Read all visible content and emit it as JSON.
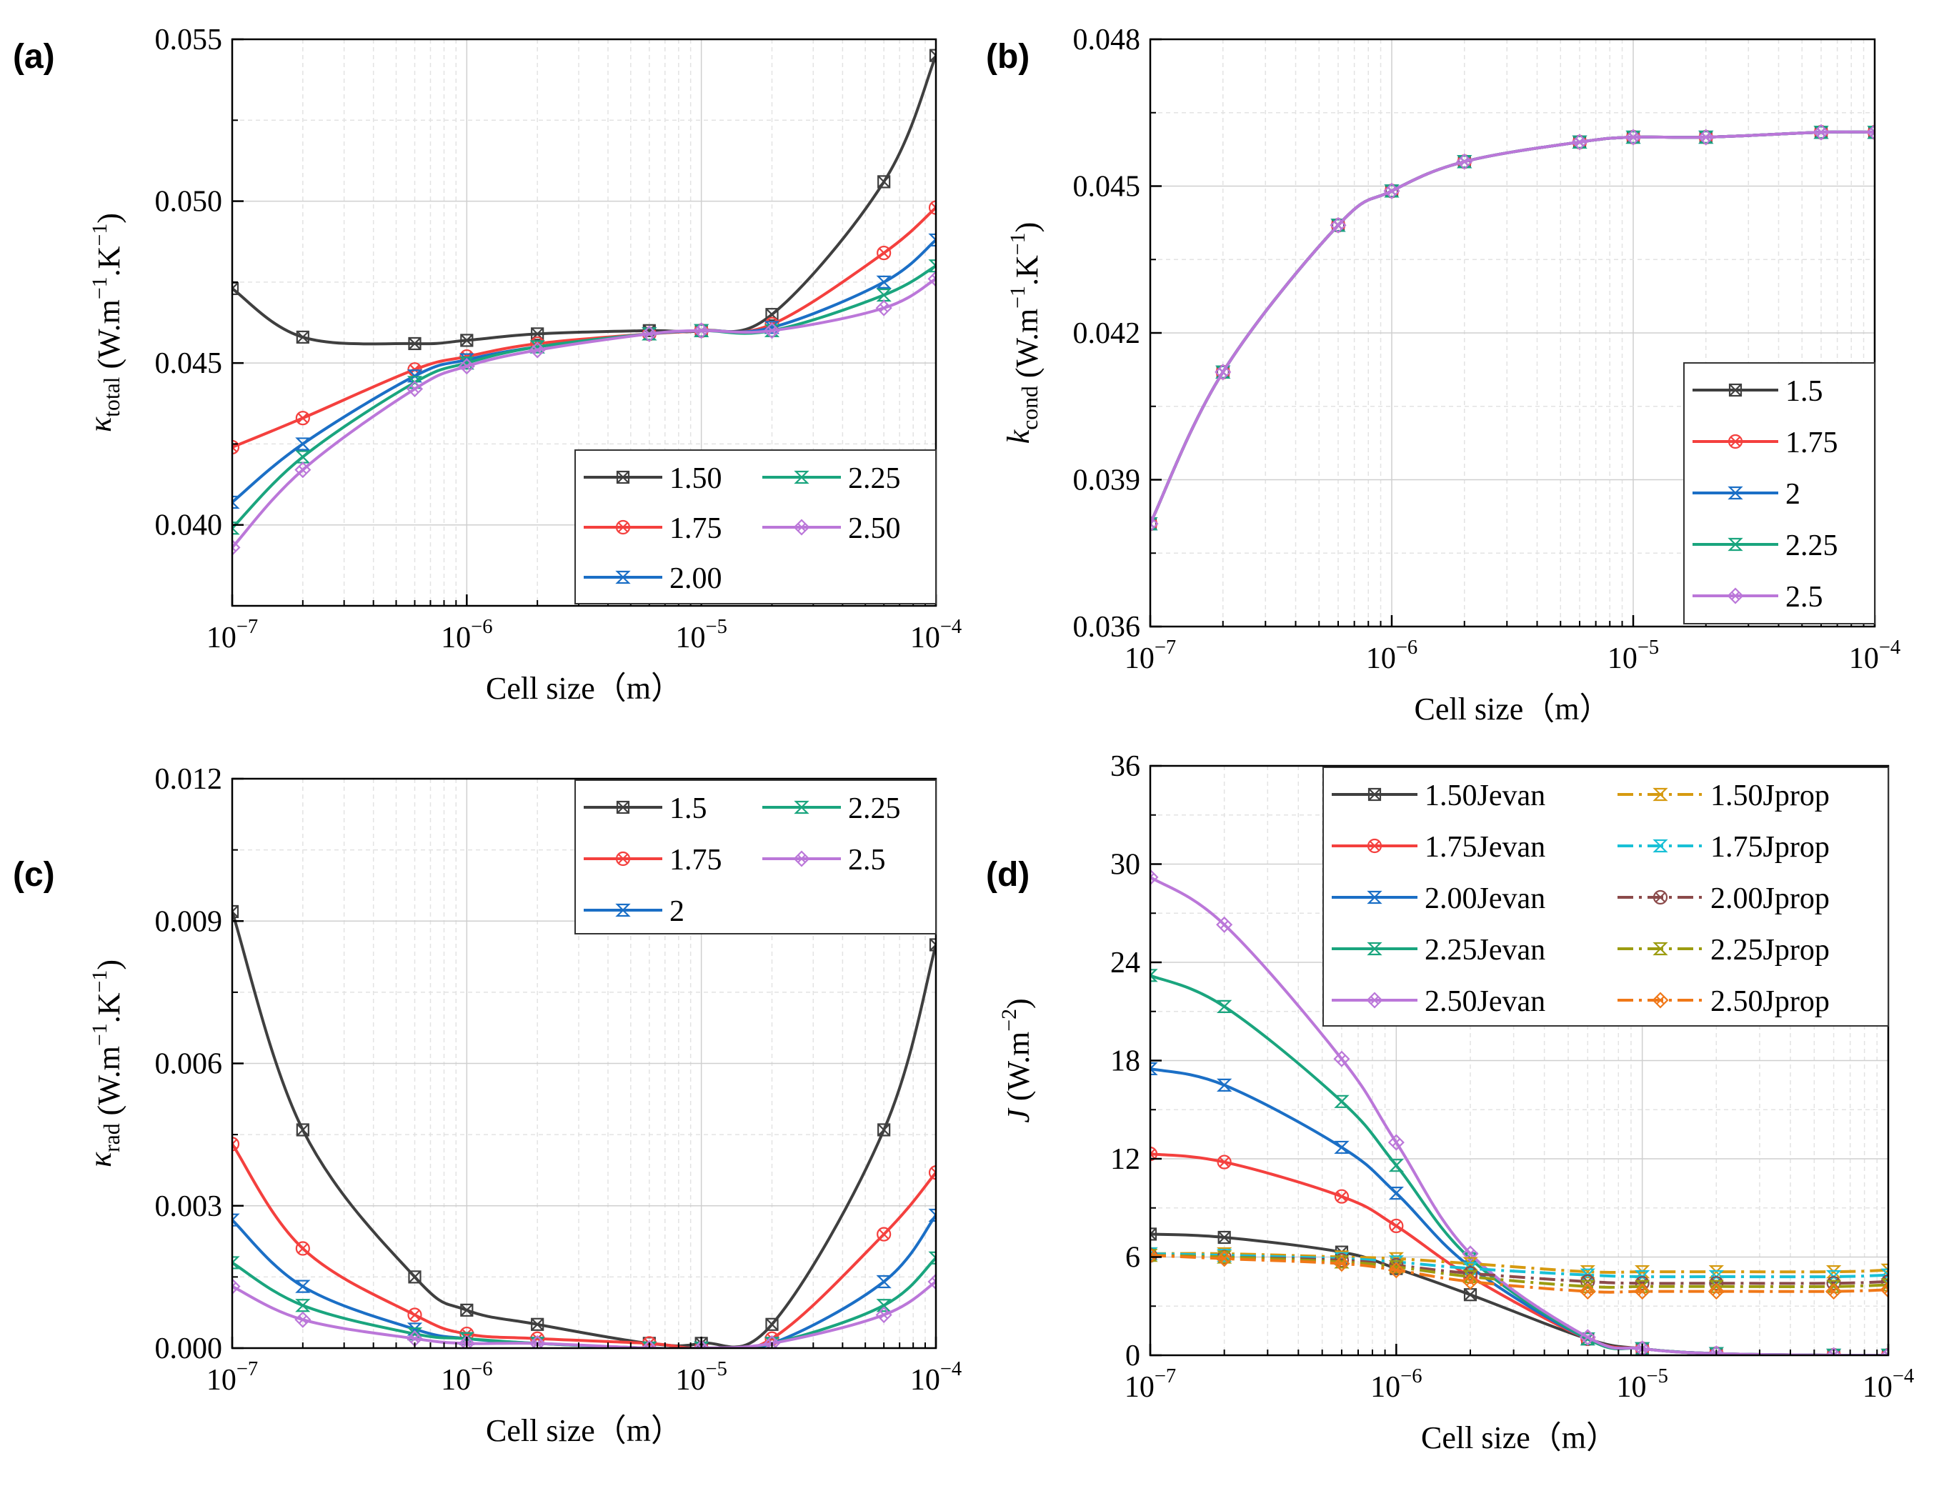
{
  "chart_data": [
    {
      "panel": "(a)",
      "type": "line",
      "xscale": "log",
      "x": [
        1e-07,
        2e-07,
        6e-07,
        1e-06,
        2e-06,
        6e-06,
        1e-05,
        2e-05,
        6e-05,
        0.0001
      ],
      "xlim": [
        1e-07,
        0.0001
      ],
      "xticks": [
        1e-07,
        1e-06,
        1e-05,
        0.0001
      ],
      "xtick_labels": [
        {
          "base": "10",
          "exp": "−7"
        },
        {
          "base": "10",
          "exp": "−6"
        },
        {
          "base": "10",
          "exp": "−5"
        },
        {
          "base": "10",
          "exp": "−4"
        }
      ],
      "ylim": [
        0.0375,
        0.055
      ],
      "yticks": [
        0.04,
        0.045,
        0.05,
        0.055
      ],
      "ytick_labels": [
        "0.040",
        "0.045",
        "0.050",
        "0.055"
      ],
      "xlabel": "Cell size（m）",
      "ylabel": {
        "symbol": "κ",
        "sub": "total",
        "unit_pre": " (W.m",
        "sup1": "−1",
        "unit_mid": ".K",
        "sup2": "−1",
        "unit_post": ")"
      },
      "legend": {
        "position": "bottom-right",
        "columns": 2
      },
      "series": [
        {
          "name": "1.50",
          "color": "#3f3f3f",
          "marker": "square-x",
          "values": [
            0.0473,
            0.0458,
            0.0456,
            0.0457,
            0.0459,
            0.046,
            0.046,
            0.0465,
            0.0506,
            0.0545
          ]
        },
        {
          "name": "1.75",
          "color": "#f4403e",
          "marker": "circle-x",
          "values": [
            0.0424,
            0.0433,
            0.0448,
            0.0452,
            0.0456,
            0.0459,
            0.046,
            0.0462,
            0.0484,
            0.0498
          ]
        },
        {
          "name": "2.00",
          "color": "#1b6fc6",
          "marker": "hourglass",
          "values": [
            0.0407,
            0.0425,
            0.0446,
            0.0451,
            0.0455,
            0.0459,
            0.046,
            0.0461,
            0.0475,
            0.0488
          ]
        },
        {
          "name": "2.25",
          "color": "#1aa57e",
          "marker": "hourglass",
          "values": [
            0.0399,
            0.0421,
            0.0444,
            0.045,
            0.0455,
            0.0459,
            0.046,
            0.046,
            0.0471,
            0.048
          ]
        },
        {
          "name": "2.50",
          "color": "#bb77d9",
          "marker": "diamond-x",
          "values": [
            0.0393,
            0.0417,
            0.0442,
            0.0449,
            0.0454,
            0.0459,
            0.046,
            0.046,
            0.0467,
            0.0476
          ]
        }
      ]
    },
    {
      "panel": "(b)",
      "type": "line",
      "xscale": "log",
      "x": [
        1e-07,
        2e-07,
        6e-07,
        1e-06,
        2e-06,
        6e-06,
        1e-05,
        2e-05,
        6e-05,
        0.0001
      ],
      "xlim": [
        1e-07,
        0.0001
      ],
      "xticks": [
        1e-07,
        1e-06,
        1e-05,
        0.0001
      ],
      "xtick_labels": [
        {
          "base": "10",
          "exp": "−7"
        },
        {
          "base": "10",
          "exp": "−6"
        },
        {
          "base": "10",
          "exp": "−5"
        },
        {
          "base": "10",
          "exp": "−4"
        }
      ],
      "ylim": [
        0.036,
        0.048
      ],
      "yticks": [
        0.036,
        0.039,
        0.042,
        0.045,
        0.048
      ],
      "ytick_labels": [
        "0.036",
        "0.039",
        "0.042",
        "0.045",
        "0.048"
      ],
      "xlabel": "Cell size（m）",
      "ylabel": {
        "symbol": "k",
        "sub": "cond",
        "unit_pre": " (W.m",
        "sup1": "−1",
        "unit_mid": ".K",
        "sup2": "−1",
        "unit_post": ")"
      },
      "legend": {
        "position": "bottom-right",
        "columns": 1
      },
      "series": [
        {
          "name": "1.5",
          "color": "#3f3f3f",
          "marker": "square-x",
          "values": [
            0.0381,
            0.0412,
            0.0442,
            0.0449,
            0.0455,
            0.0459,
            0.046,
            0.046,
            0.0461,
            0.0461
          ]
        },
        {
          "name": "1.75",
          "color": "#f4403e",
          "marker": "circle-x",
          "values": [
            0.0381,
            0.0412,
            0.0442,
            0.0449,
            0.0455,
            0.0459,
            0.046,
            0.046,
            0.0461,
            0.0461
          ]
        },
        {
          "name": "2",
          "color": "#1b6fc6",
          "marker": "hourglass",
          "values": [
            0.0381,
            0.0412,
            0.0442,
            0.0449,
            0.0455,
            0.0459,
            0.046,
            0.046,
            0.0461,
            0.0461
          ]
        },
        {
          "name": "2.25",
          "color": "#1aa57e",
          "marker": "hourglass",
          "values": [
            0.0381,
            0.0412,
            0.0442,
            0.0449,
            0.0455,
            0.0459,
            0.046,
            0.046,
            0.0461,
            0.0461
          ]
        },
        {
          "name": "2.5",
          "color": "#bb77d9",
          "marker": "diamond-x",
          "values": [
            0.0381,
            0.0412,
            0.0442,
            0.0449,
            0.0455,
            0.0459,
            0.046,
            0.046,
            0.0461,
            0.0461
          ]
        }
      ]
    },
    {
      "panel": "(c)",
      "type": "line",
      "xscale": "log",
      "x": [
        1e-07,
        2e-07,
        6e-07,
        1e-06,
        2e-06,
        6e-06,
        1e-05,
        2e-05,
        6e-05,
        0.0001
      ],
      "xlim": [
        1e-07,
        0.0001
      ],
      "xticks": [
        1e-07,
        1e-06,
        1e-05,
        0.0001
      ],
      "xtick_labels": [
        {
          "base": "10",
          "exp": "−7"
        },
        {
          "base": "10",
          "exp": "−6"
        },
        {
          "base": "10",
          "exp": "−5"
        },
        {
          "base": "10",
          "exp": "−4"
        }
      ],
      "ylim": [
        0,
        0.012
      ],
      "yticks": [
        0,
        0.003,
        0.006,
        0.009,
        0.012
      ],
      "ytick_labels": [
        "0.000",
        "0.003",
        "0.006",
        "0.009",
        "0.012"
      ],
      "xlabel": "Cell size（m）",
      "ylabel": {
        "symbol": "κ",
        "sub": "rad",
        "unit_pre": " (W.m",
        "sup1": "−1",
        "unit_mid": ".K",
        "sup2": "−1",
        "unit_post": ")"
      },
      "legend": {
        "position": "top-right",
        "columns": 2
      },
      "series": [
        {
          "name": "1.5",
          "color": "#3f3f3f",
          "marker": "square-x",
          "values": [
            0.0092,
            0.0046,
            0.0015,
            0.0008,
            0.0005,
            0.0001,
            0.0001,
            0.0005,
            0.0046,
            0.0085
          ]
        },
        {
          "name": "1.75",
          "color": "#f4403e",
          "marker": "circle-x",
          "values": [
            0.0043,
            0.0021,
            0.0007,
            0.0003,
            0.0002,
            0.0001,
            0.0,
            0.0002,
            0.0024,
            0.0037
          ]
        },
        {
          "name": "2",
          "color": "#1b6fc6",
          "marker": "hourglass",
          "values": [
            0.0027,
            0.0013,
            0.0004,
            0.0002,
            0.0001,
            0.0,
            0.0,
            0.0001,
            0.0014,
            0.0028
          ]
        },
        {
          "name": "2.25",
          "color": "#1aa57e",
          "marker": "hourglass",
          "values": [
            0.0018,
            0.0009,
            0.0003,
            0.0002,
            0.0001,
            0.0,
            0.0,
            0.0001,
            0.0009,
            0.0019
          ]
        },
        {
          "name": "2.5",
          "color": "#bb77d9",
          "marker": "diamond-x",
          "values": [
            0.0013,
            0.0006,
            0.0002,
            0.0001,
            0.0001,
            0.0,
            0.0,
            0.0001,
            0.0007,
            0.0014
          ]
        }
      ]
    },
    {
      "panel": "(d)",
      "type": "line",
      "xscale": "log",
      "x": [
        1e-07,
        2e-07,
        6e-07,
        1e-06,
        2e-06,
        6e-06,
        1e-05,
        2e-05,
        6e-05,
        0.0001
      ],
      "xlim": [
        1e-07,
        0.0001
      ],
      "xticks": [
        1e-07,
        1e-06,
        1e-05,
        0.0001
      ],
      "xtick_labels": [
        {
          "base": "10",
          "exp": "−7"
        },
        {
          "base": "10",
          "exp": "−6"
        },
        {
          "base": "10",
          "exp": "−5"
        },
        {
          "base": "10",
          "exp": "−4"
        }
      ],
      "ylim": [
        0,
        36
      ],
      "yticks": [
        0,
        6,
        12,
        18,
        24,
        30,
        36
      ],
      "ytick_labels": [
        "0",
        "6",
        "12",
        "18",
        "24",
        "30",
        "36"
      ],
      "xlabel": "Cell size（m）",
      "ylabel": {
        "symbol": "J",
        "sub": "",
        "unit_pre": " (W.m",
        "sup1": "−2",
        "unit_mid": "",
        "sup2": "",
        "unit_post": ")"
      },
      "legend": {
        "position": "top-right",
        "columns": 2
      },
      "series": [
        {
          "name": "1.50Jevan",
          "color": "#3f3f3f",
          "marker": "square-x",
          "dash": "solid",
          "values": [
            7.4,
            7.2,
            6.3,
            5.3,
            3.7,
            1.0,
            0.4,
            0.1,
            0.0,
            0.0
          ]
        },
        {
          "name": "1.75Jevan",
          "color": "#f4403e",
          "marker": "circle-x",
          "dash": "solid",
          "values": [
            12.3,
            11.8,
            9.7,
            7.9,
            4.8,
            1.0,
            0.4,
            0.1,
            0.0,
            0.0
          ]
        },
        {
          "name": "2.00Jevan",
          "color": "#1b6fc6",
          "marker": "hourglass",
          "dash": "solid",
          "values": [
            17.5,
            16.5,
            12.7,
            9.9,
            5.4,
            1.0,
            0.4,
            0.1,
            0.0,
            0.0
          ]
        },
        {
          "name": "2.25Jevan",
          "color": "#1aa57e",
          "marker": "hourglass",
          "dash": "solid",
          "values": [
            23.2,
            21.3,
            15.5,
            11.6,
            5.9,
            1.0,
            0.4,
            0.1,
            0.0,
            0.0
          ]
        },
        {
          "name": "2.50Jevan",
          "color": "#bb77d9",
          "marker": "diamond-x",
          "dash": "solid",
          "values": [
            29.2,
            26.3,
            18.1,
            13.0,
            6.2,
            1.1,
            0.4,
            0.1,
            0.0,
            0.0
          ]
        },
        {
          "name": "1.50Jprop",
          "color": "#d69a10",
          "marker": "hourglass",
          "dash": "dashdot",
          "values": [
            6.2,
            6.2,
            6.0,
            5.9,
            5.6,
            5.1,
            5.1,
            5.1,
            5.1,
            5.2
          ]
        },
        {
          "name": "1.75Jprop",
          "color": "#19c0d6",
          "marker": "hourglass",
          "dash": "dashdot",
          "values": [
            6.2,
            6.1,
            5.9,
            5.7,
            5.3,
            4.9,
            4.8,
            4.8,
            4.8,
            4.9
          ]
        },
        {
          "name": "2.00Jprop",
          "color": "#8b4a4a",
          "marker": "circle-x",
          "dash": "dashdot",
          "values": [
            6.1,
            6.0,
            5.8,
            5.5,
            5.0,
            4.5,
            4.4,
            4.4,
            4.4,
            4.5
          ]
        },
        {
          "name": "2.25Jprop",
          "color": "#9c9c10",
          "marker": "hourglass",
          "dash": "dashdot",
          "values": [
            6.1,
            6.0,
            5.7,
            5.4,
            4.8,
            4.2,
            4.2,
            4.2,
            4.2,
            4.3
          ]
        },
        {
          "name": "2.50Jprop",
          "color": "#f07818",
          "marker": "diamond-x",
          "dash": "dashdot",
          "values": [
            6.1,
            5.9,
            5.6,
            5.2,
            4.5,
            3.9,
            3.9,
            3.9,
            3.9,
            4.0
          ]
        }
      ]
    }
  ]
}
